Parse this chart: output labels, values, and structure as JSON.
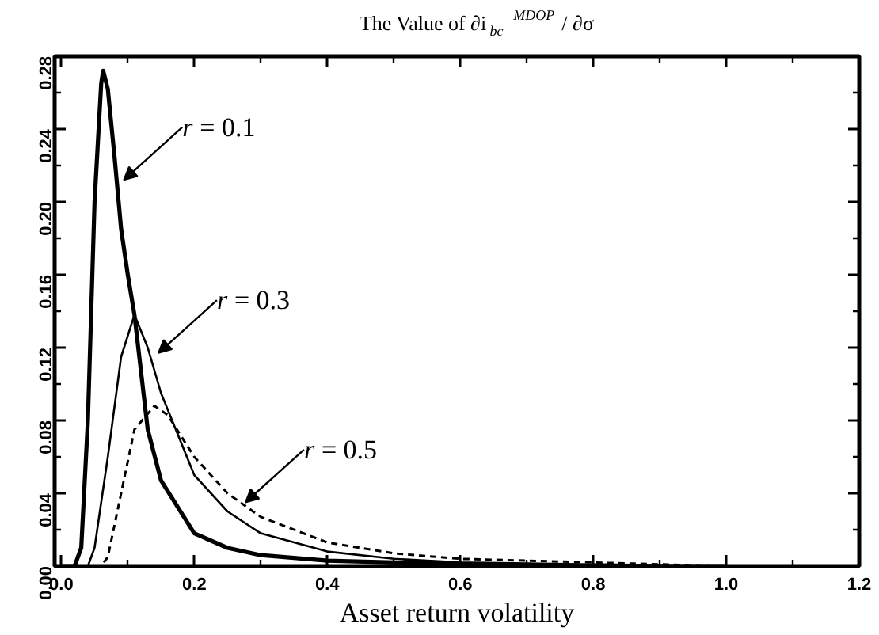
{
  "chart_data": {
    "type": "line",
    "title": "The Value of ∂i$_{bc}$$^{MDOP}$ / ∂σ",
    "xlabel": "Asset return volatility",
    "xlim": [
      -0.01,
      1.2
    ],
    "xticks": [
      {
        "value": 0,
        "label": "0.0"
      },
      0.2,
      0.4,
      0.6,
      0.8,
      {
        "value": 1,
        "label": "1.0"
      },
      1.2
    ],
    "ylim": [
      0,
      0.28
    ],
    "yticks": [
      {
        "value": 0,
        "label": "0.00"
      },
      0.04,
      0.08,
      0.12,
      0.16,
      {
        "value": 0.2,
        "label": "0.20"
      },
      0.24,
      0.28
    ],
    "grid": false,
    "marker": "none",
    "series": [
      {
        "color": "#000000",
        "line_style": "solid",
        "x": [
          0.0,
          0.02,
          0.03,
          0.04,
          0.05,
          0.06,
          0.063,
          0.07,
          0.08,
          0.09,
          0.1,
          0.11,
          0.13,
          0.15,
          0.2,
          0.25,
          0.3,
          0.4,
          0.5,
          0.6,
          0.8,
          1.0
        ],
        "values": [
          0,
          0,
          0.01,
          0.08,
          0.2,
          0.265,
          0.272,
          0.262,
          0.225,
          0.185,
          0.16,
          0.138,
          0.075,
          0.047,
          0.018,
          0.01,
          0.006,
          0.003,
          0.002,
          0.001,
          0,
          0
        ]
      },
      {
        "color": "#000000",
        "line_style": "solid",
        "x": [
          0.0,
          0.04,
          0.05,
          0.07,
          0.09,
          0.11,
          0.13,
          0.15,
          0.2,
          0.25,
          0.3,
          0.4,
          0.5,
          0.6,
          0.8,
          1.0
        ],
        "values": [
          0,
          0,
          0.01,
          0.06,
          0.115,
          0.138,
          0.12,
          0.095,
          0.05,
          0.03,
          0.018,
          0.008,
          0.004,
          0.002,
          0.001,
          0
        ]
      },
      {
        "color": "#000000",
        "line_style": "dashed",
        "x": [
          0.0,
          0.06,
          0.07,
          0.09,
          0.11,
          0.14,
          0.16,
          0.2,
          0.25,
          0.3,
          0.4,
          0.5,
          0.6,
          0.8,
          1.0
        ],
        "values": [
          0,
          0,
          0.005,
          0.04,
          0.075,
          0.088,
          0.083,
          0.06,
          0.04,
          0.027,
          0.013,
          0.007,
          0.004,
          0.002,
          0
        ]
      }
    ],
    "annotations": [
      {
        "text": "r = 0.1",
        "x": 0.094,
        "y": 0.212
      },
      {
        "text": "r = 0.3",
        "x": 0.146,
        "y": 0.117
      },
      {
        "text": "r = 0.5",
        "x": 0.277,
        "y": 0.035
      }
    ]
  }
}
